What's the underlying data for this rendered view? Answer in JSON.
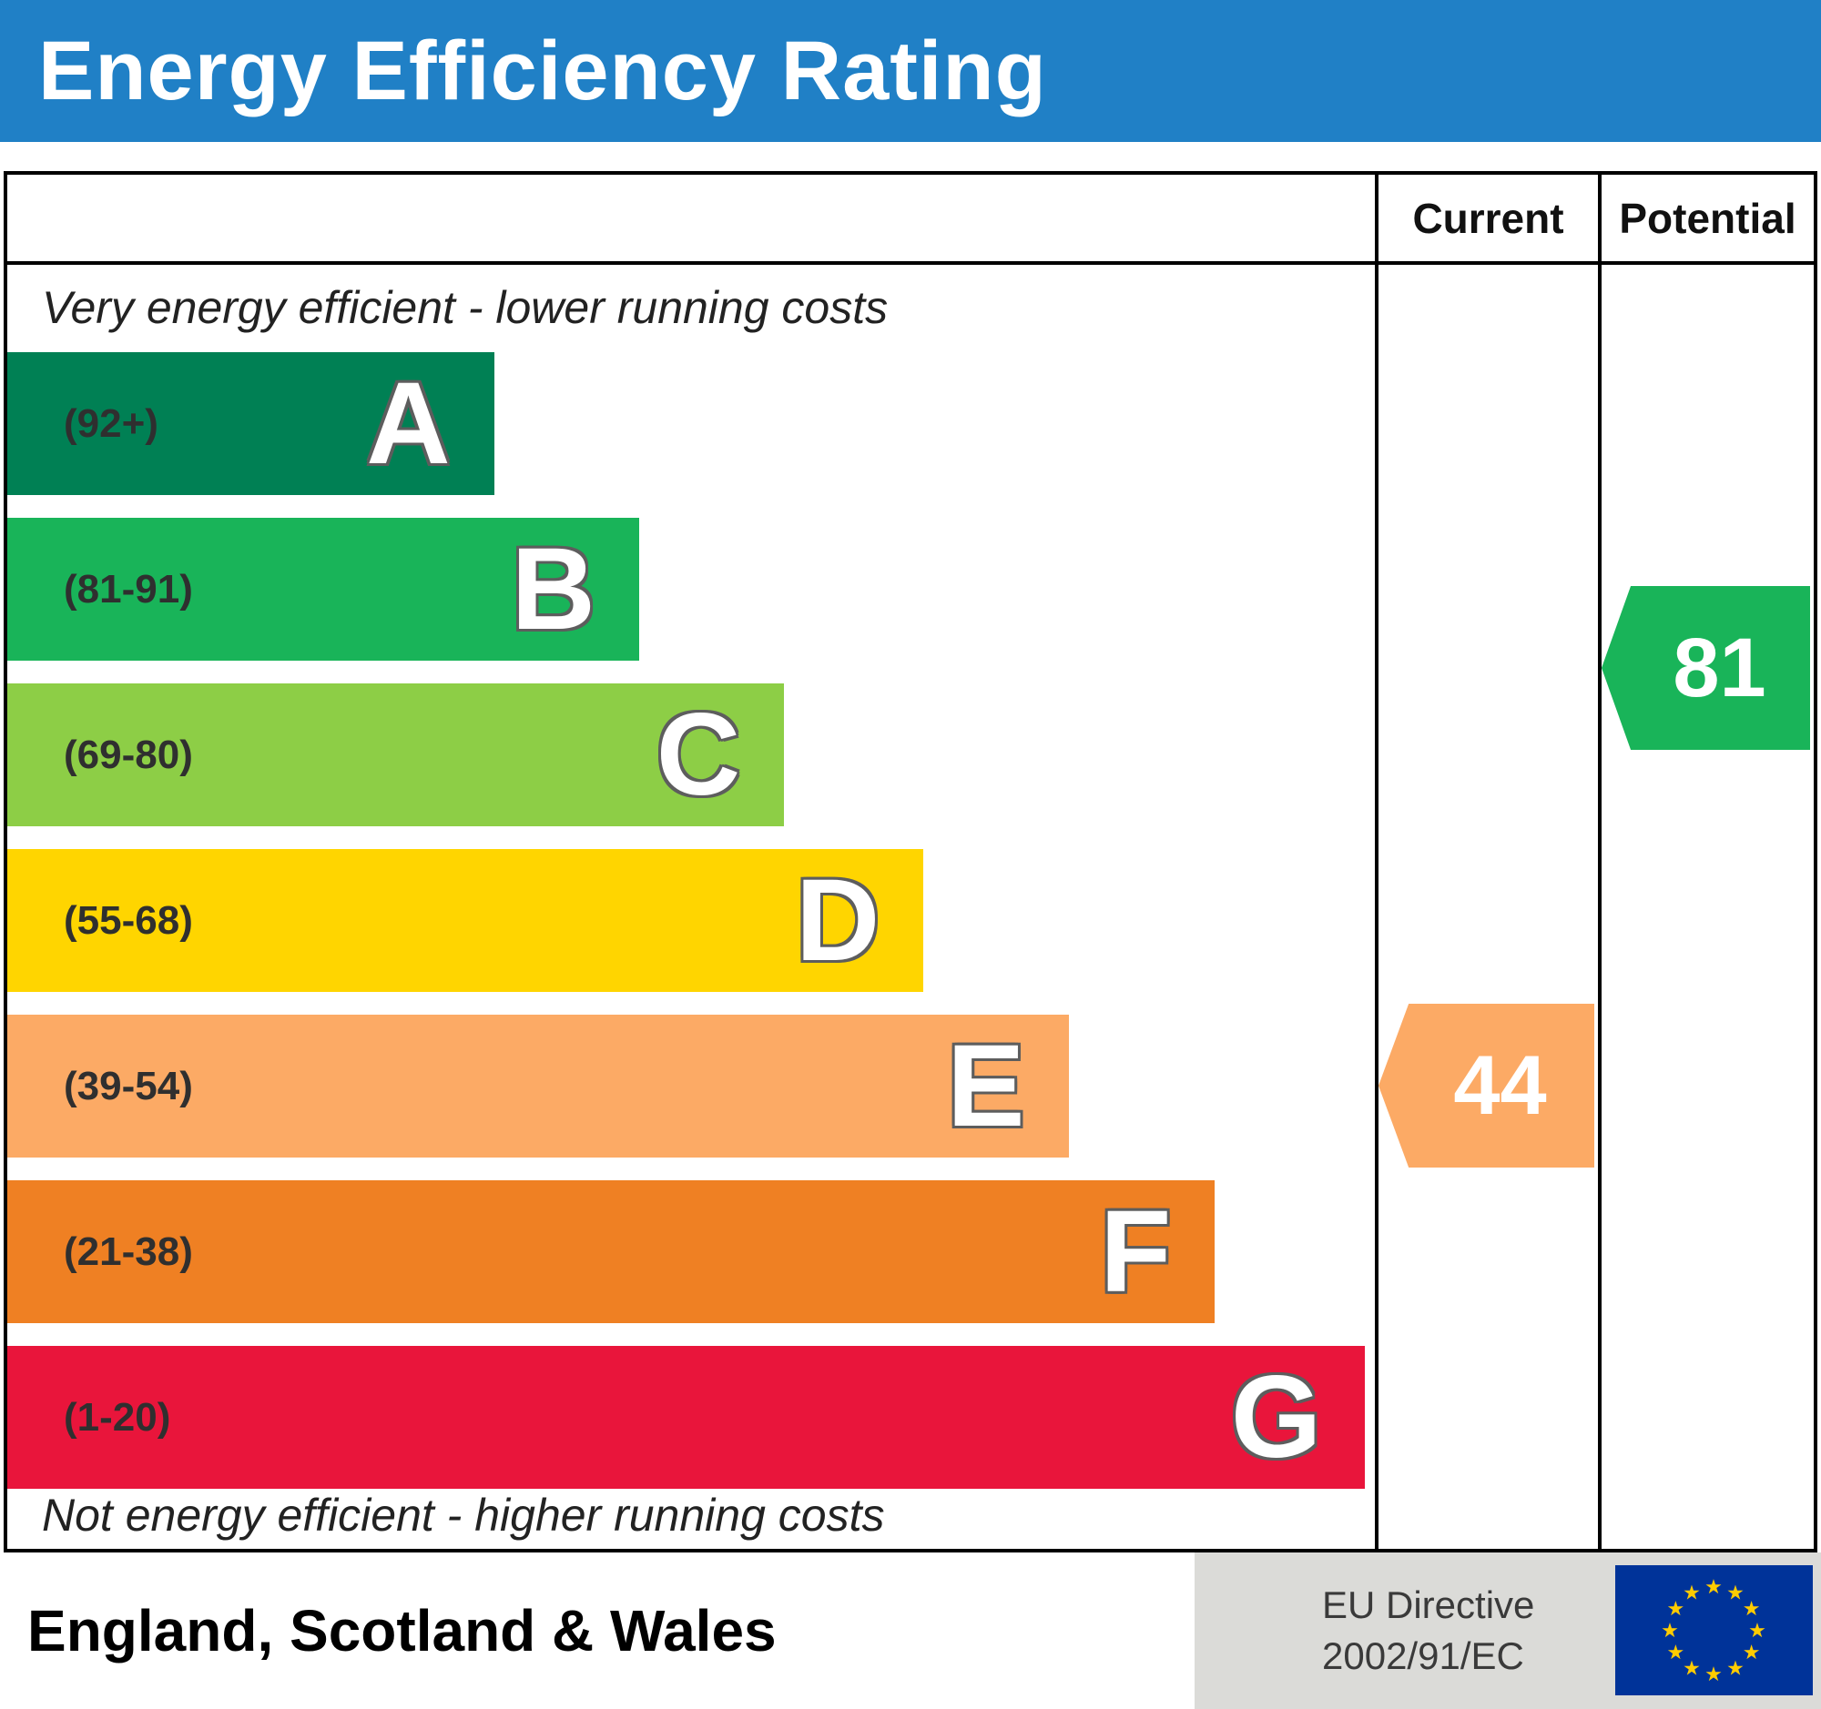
{
  "title": "Energy Efficiency Rating",
  "header": {
    "current_label": "Current",
    "potential_label": "Potential"
  },
  "captions": {
    "top": "Very energy efficient - lower running costs",
    "bottom": "Not energy efficient - higher running costs"
  },
  "bands": [
    {
      "letter": "A",
      "range_label": "(92+)",
      "color": "#008054",
      "width_pct": 35.6
    },
    {
      "letter": "B",
      "range_label": "(81-91)",
      "color": "#19b459",
      "width_pct": 46.2
    },
    {
      "letter": "C",
      "range_label": "(69-80)",
      "color": "#8dce46",
      "width_pct": 56.8
    },
    {
      "letter": "D",
      "range_label": "(55-68)",
      "color": "#ffd500",
      "width_pct": 67.0
    },
    {
      "letter": "E",
      "range_label": "(39-54)",
      "color": "#fcaa65",
      "width_pct": 77.6
    },
    {
      "letter": "F",
      "range_label": "(21-38)",
      "color": "#ef8023",
      "width_pct": 88.3
    },
    {
      "letter": "G",
      "range_label": "(1-20)",
      "color": "#e9153b",
      "width_pct": 99.3
    }
  ],
  "arrows": {
    "current": {
      "value": "44",
      "color": "#fcaa65",
      "band": "E"
    },
    "potential": {
      "value": "81",
      "color": "#19b459",
      "band": "B"
    }
  },
  "footer": {
    "region": "England, Scotland & Wales",
    "directive_line1": "EU Directive",
    "directive_line2": "2002/91/EC"
  },
  "icons": {
    "eu_flag": "eu-flag-icon"
  },
  "colors": {
    "title_bar": "#2080c6",
    "flag_blue": "#003399",
    "flag_star_yellow": "#ffcc00"
  },
  "chart_data": {
    "type": "bar",
    "title": "Energy Efficiency Rating",
    "categories": [
      "A",
      "B",
      "C",
      "D",
      "E",
      "F",
      "G"
    ],
    "band_range_labels": [
      "(92+)",
      "(81-91)",
      "(69-80)",
      "(55-68)",
      "(39-54)",
      "(21-38)",
      "(1-20)"
    ],
    "band_ranges": [
      [
        92,
        100
      ],
      [
        81,
        91
      ],
      [
        69,
        80
      ],
      [
        55,
        68
      ],
      [
        39,
        54
      ],
      [
        21,
        38
      ],
      [
        1,
        20
      ]
    ],
    "bar_colors": [
      "#008054",
      "#19b459",
      "#8dce46",
      "#ffd500",
      "#fcaa65",
      "#ef8023",
      "#e9153b"
    ],
    "bar_relative_lengths": [
      0.36,
      0.46,
      0.57,
      0.67,
      0.78,
      0.88,
      0.99
    ],
    "markers": [
      {
        "name": "Current",
        "value": 44,
        "band": "E",
        "color": "#fcaa65"
      },
      {
        "name": "Potential",
        "value": 81,
        "band": "B",
        "color": "#19b459"
      }
    ],
    "annotations": [
      "Very energy efficient - lower running costs",
      "Not energy efficient - higher running costs"
    ],
    "region": "England, Scotland & Wales",
    "directive": "EU Directive 2002/91/EC",
    "xlabel": "",
    "ylabel": "",
    "grid": false,
    "legend_position": "none"
  }
}
